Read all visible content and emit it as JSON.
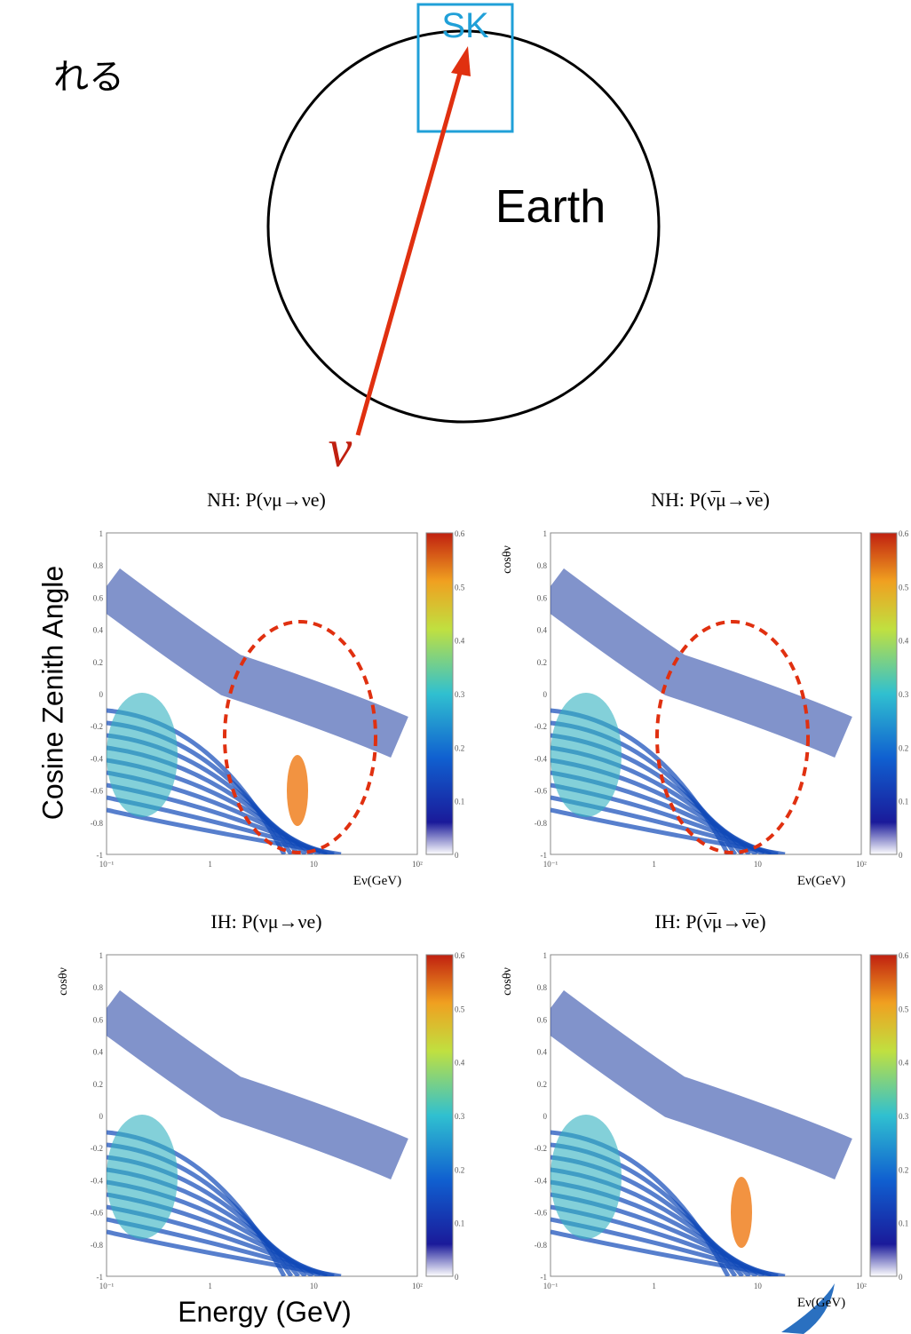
{
  "header_text": "れる",
  "diagram": {
    "detector": "SK",
    "body": "Earth",
    "particle": "ν"
  },
  "axis_labels": {
    "y": "Cosine Zenith Angle",
    "x": "Energy (GeV)"
  },
  "panels": [
    {
      "title": "NH: P(νμ→νe)",
      "x_label": "Eν(GeV)"
    },
    {
      "title": "NH: P(ν̅μ→ν̅e)",
      "y_label": "cosθν",
      "x_label": "Eν(GeV)"
    },
    {
      "title": "IH: P(νμ→νe)",
      "y_label": "cosθν"
    },
    {
      "title": "IH: P(ν̅μ→ν̅e)",
      "y_label": "cosθν",
      "x_label": "Eν(GeV)"
    }
  ],
  "y_ticks": [
    "1",
    "0.8",
    "0.6",
    "0.4",
    "0.2",
    "0",
    "-0.2",
    "-0.4",
    "-0.6",
    "-0.8",
    "-1"
  ],
  "x_ticks": [
    "10⁻¹",
    "1",
    "10",
    "10²"
  ],
  "colorbar_ticks": [
    "0.6",
    "0.5",
    "0.4",
    "0.3",
    "0.2",
    "0.1",
    "0"
  ]
}
